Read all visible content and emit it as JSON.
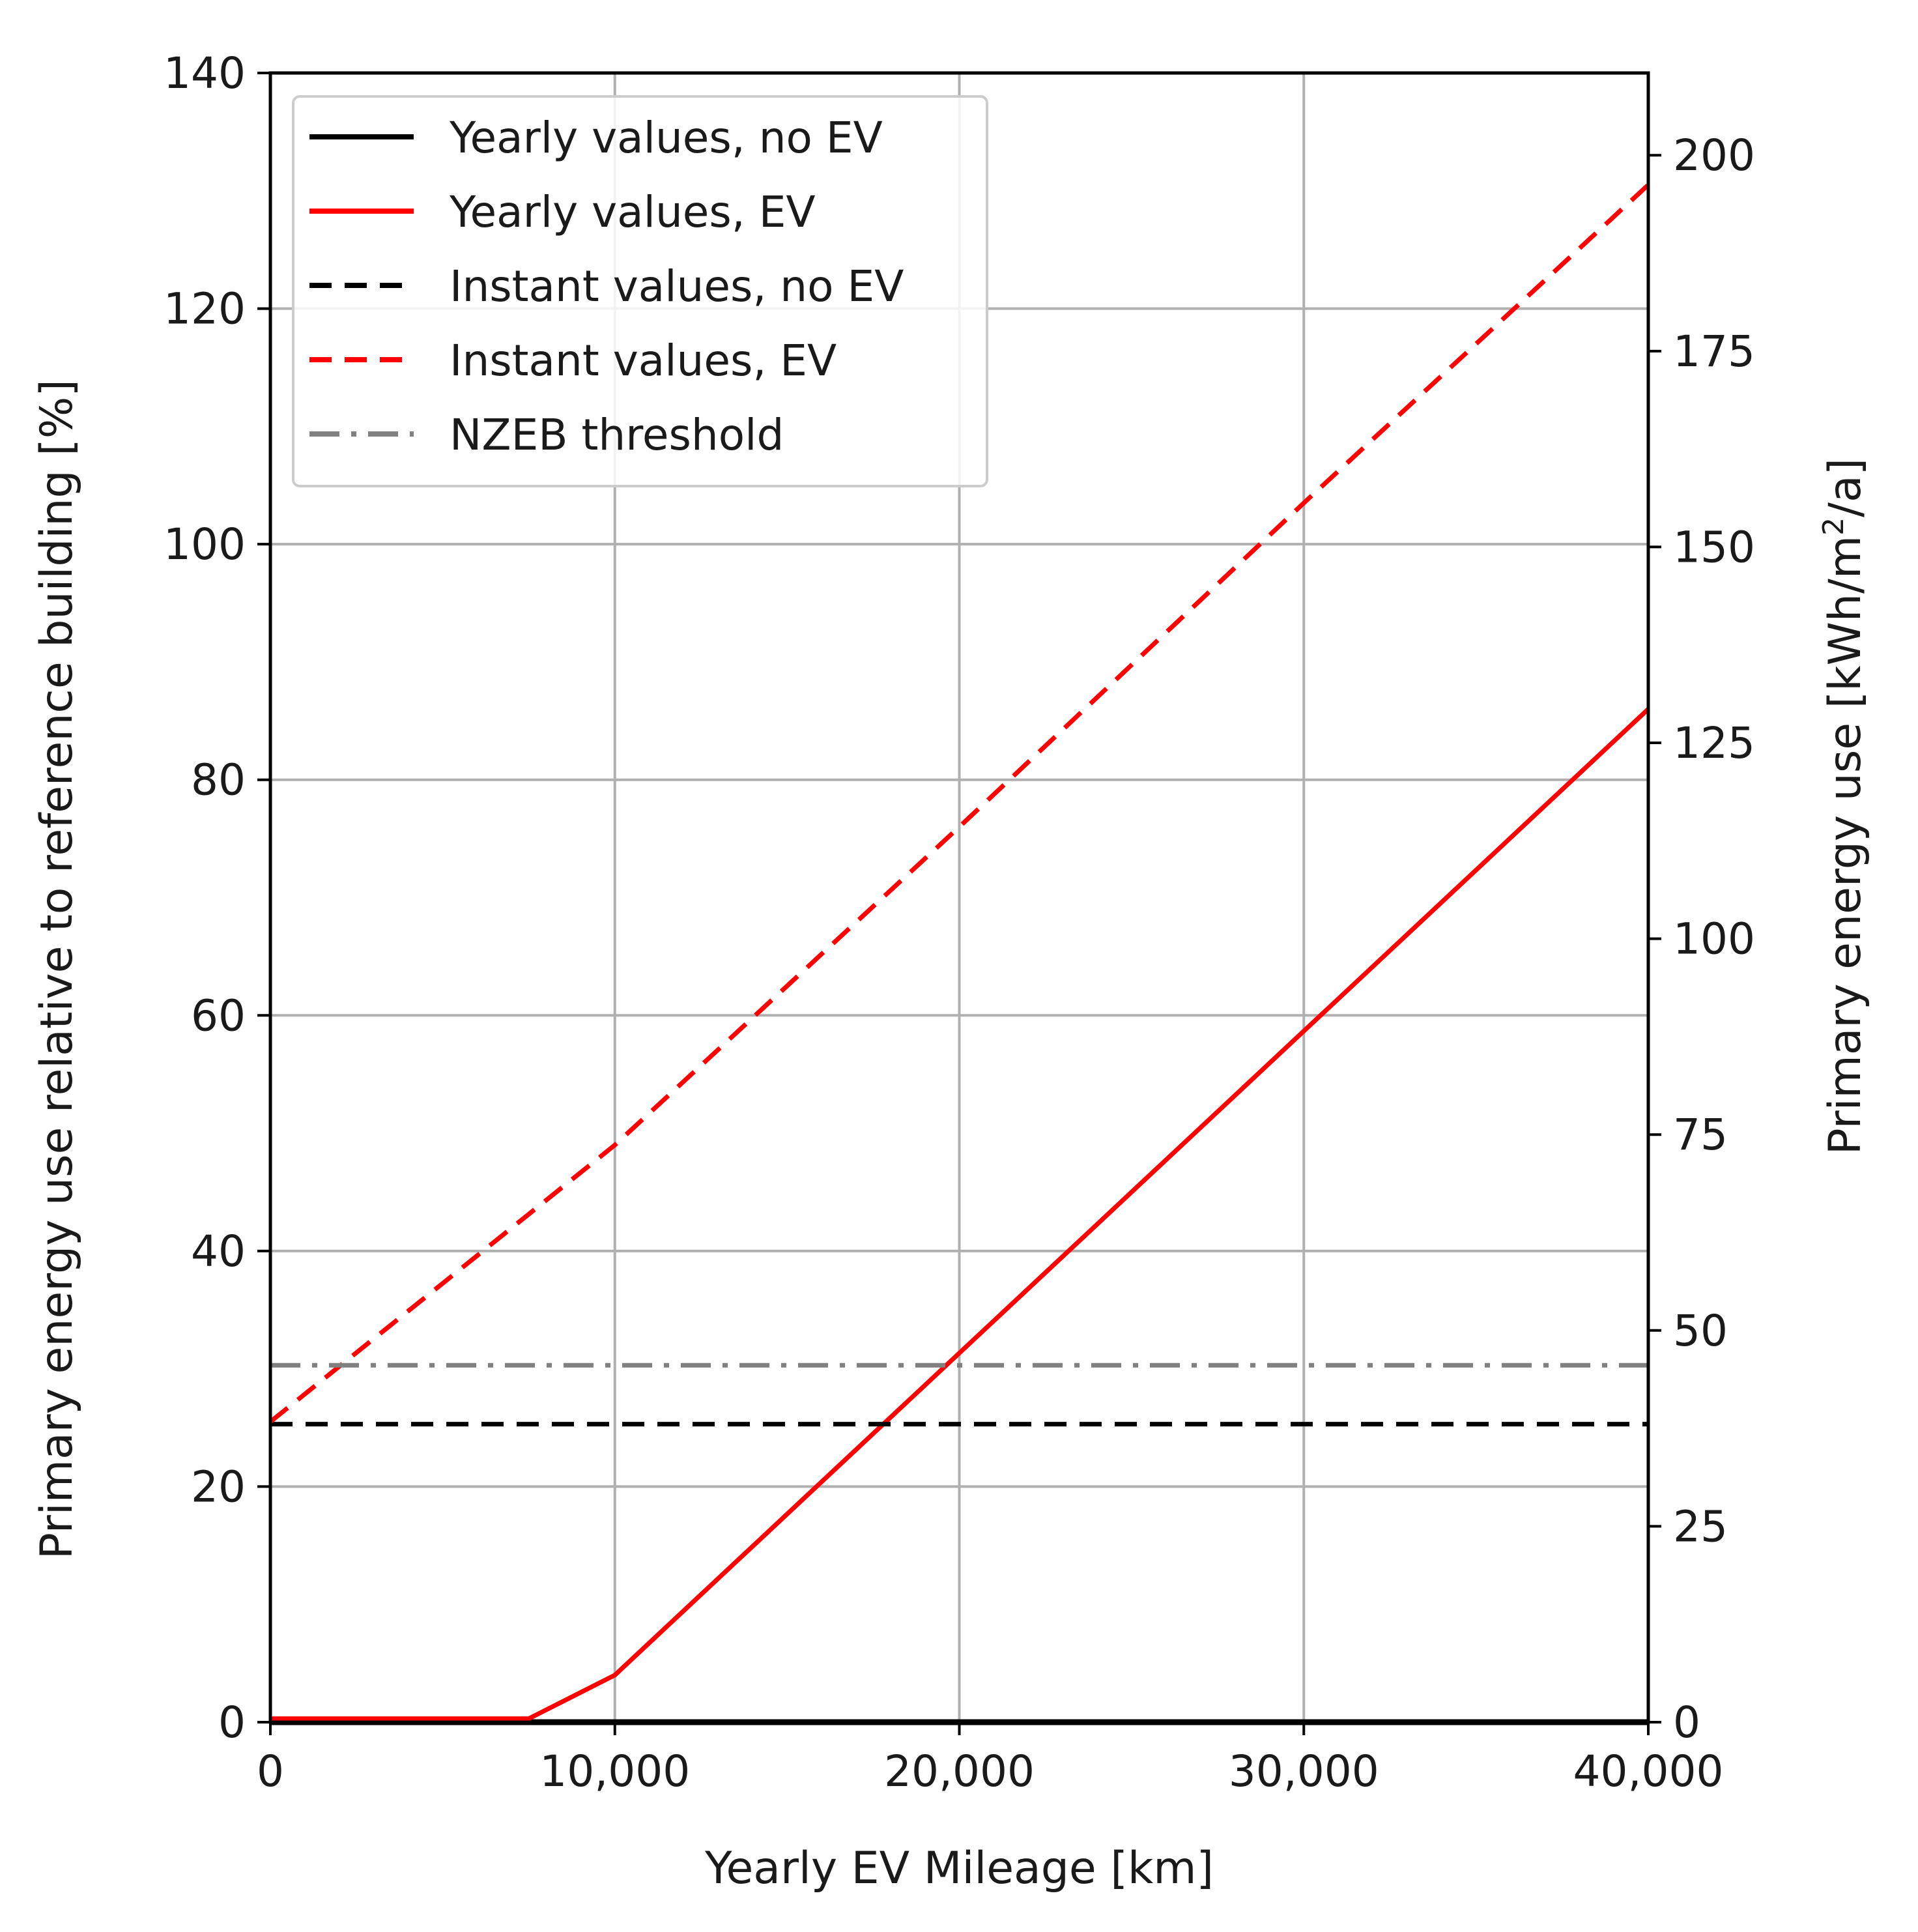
{
  "chart_data": {
    "type": "line",
    "title": "",
    "xlabel": "Yearly EV Mileage [km]",
    "ylabel": "Primary energy use relative to reference building [%]",
    "ylabel_right_prefix": "Primary energy use [kWh/m",
    "ylabel_right_sup": "2",
    "ylabel_right_suffix": "/a]",
    "xlim": [
      0,
      40000
    ],
    "ylim": [
      0,
      140
    ],
    "ylim_right": [
      0,
      210.5
    ],
    "grid": true,
    "x_ticks": [
      0,
      10000,
      20000,
      30000,
      40000
    ],
    "x_tick_labels": [
      "0",
      "10,000",
      "20,000",
      "30,000",
      "40,000"
    ],
    "y_ticks": [
      0,
      20,
      40,
      60,
      80,
      100,
      120,
      140
    ],
    "y_tick_labels": [
      "0",
      "20",
      "40",
      "60",
      "80",
      "100",
      "120",
      "140"
    ],
    "y_right_ticks": [
      0,
      25,
      50,
      75,
      100,
      125,
      150,
      175,
      200
    ],
    "y_right_tick_labels": [
      "0",
      "25",
      "50",
      "75",
      "100",
      "125",
      "150",
      "175",
      "200"
    ],
    "legend_position": "top-left",
    "series": [
      {
        "name": "Yearly values, no EV",
        "color": "#000000",
        "style": "solid",
        "x": [
          0,
          40000
        ],
        "y": [
          0,
          0
        ]
      },
      {
        "name": "Yearly values, EV",
        "color": "#ff0000",
        "style": "solid",
        "x": [
          0,
          7500,
          10000,
          40000
        ],
        "y": [
          0.3,
          0.3,
          4,
          86
        ]
      },
      {
        "name": "Instant values, no EV",
        "color": "#000000",
        "style": "dashed",
        "x": [
          0,
          40000
        ],
        "y": [
          25.3,
          25.3
        ]
      },
      {
        "name": "Instant values, EV",
        "color": "#ff0000",
        "style": "dashed",
        "x": [
          0,
          10000,
          20000,
          30000,
          40000
        ],
        "y": [
          25.5,
          49,
          76,
          103.5,
          130.5
        ]
      },
      {
        "name": "NZEB threshold",
        "color": "#808080",
        "style": "dashdot",
        "x": [
          0,
          40000
        ],
        "y": [
          30.3,
          30.3
        ]
      }
    ]
  }
}
